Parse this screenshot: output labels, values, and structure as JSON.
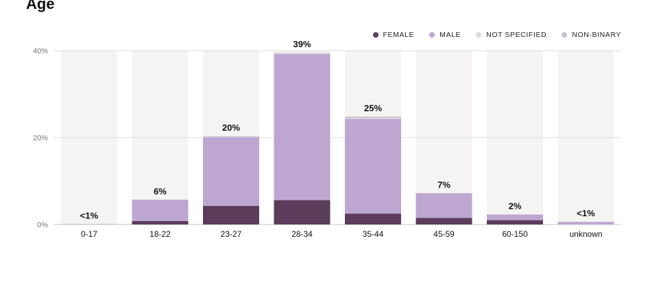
{
  "chart_data": {
    "type": "bar",
    "stacked": true,
    "title": "Age",
    "xlabel": "",
    "ylabel": "",
    "ylim": [
      0,
      40
    ],
    "yticks": [
      "0%",
      "20%",
      "40%"
    ],
    "ytick_values": [
      0,
      20,
      40
    ],
    "grid": true,
    "legend_position": "top-right",
    "categories": [
      "0-17",
      "18-22",
      "23-27",
      "28-34",
      "35-44",
      "45-59",
      "60-150",
      "unknown"
    ],
    "totals": [
      "<1%",
      "6%",
      "20%",
      "39%",
      "25%",
      "7%",
      "2%",
      "<1%"
    ],
    "series": [
      {
        "name": "FEMALE",
        "color": "#5b3c5b",
        "values": [
          0,
          0.8,
          4.3,
          5.6,
          2.5,
          1.5,
          1.0,
          0
        ]
      },
      {
        "name": "MALE",
        "color": "#bda7d1",
        "values": [
          0.1,
          4.9,
          15.8,
          33.6,
          21.8,
          5.7,
          1.3,
          0.6
        ]
      },
      {
        "name": "NOT SPECIFIED",
        "color": "#dddddd",
        "values": [
          0,
          0,
          0.1,
          0.2,
          0.2,
          0,
          0,
          0
        ]
      },
      {
        "name": "NON-BINARY",
        "color": "#c4c1cc",
        "values": [
          0,
          0,
          0.1,
          0.1,
          0.3,
          0,
          0,
          0
        ]
      }
    ]
  }
}
